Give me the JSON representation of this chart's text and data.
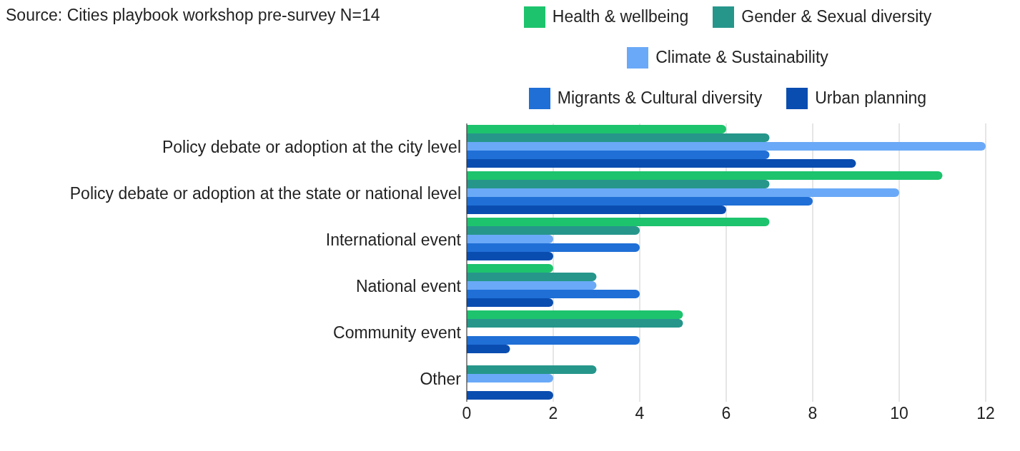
{
  "chart_data": {
    "type": "bar",
    "orientation": "horizontal",
    "annotations": [
      "Source: Cities playbook workshop pre-survey N=14"
    ],
    "categories": [
      "Policy debate or adoption at the city level",
      "Policy debate or adoption at the state or national level",
      "International event",
      "National event",
      "Community event",
      "Other"
    ],
    "series": [
      {
        "name": "Health & wellbeing",
        "color": "#1dc36d",
        "values": [
          6,
          11,
          7,
          2,
          5,
          0
        ]
      },
      {
        "name": "Gender & Sexual diversity",
        "color": "#26968b",
        "values": [
          7,
          7,
          4,
          3,
          5,
          3
        ]
      },
      {
        "name": "Climate & Sustainability",
        "color": "#6aa9f7",
        "values": [
          12,
          10,
          2,
          3,
          0,
          2
        ]
      },
      {
        "name": "Migrants & Cultural diversity",
        "color": "#1f6fd6",
        "values": [
          7,
          8,
          4,
          4,
          4,
          0
        ]
      },
      {
        "name": "Urban planning",
        "color": "#0a4db0",
        "values": [
          9,
          6,
          2,
          2,
          1,
          2
        ]
      }
    ],
    "xlim": [
      0,
      12
    ],
    "xticks": [
      0,
      2,
      4,
      6,
      8,
      10,
      12
    ],
    "grid": "x",
    "legend": "top"
  }
}
